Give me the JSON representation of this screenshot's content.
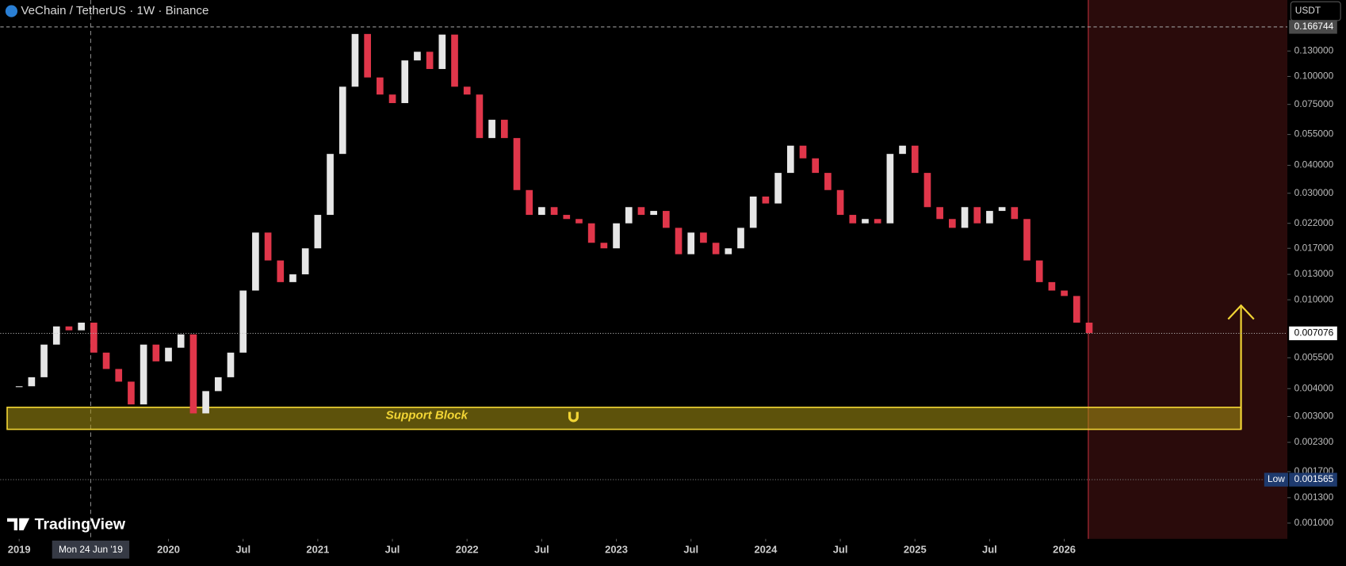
{
  "header": {
    "symbol": "VeChain / TetherUS · 1W · Binance"
  },
  "currency": "USDT",
  "logo": "TradingView",
  "chart_data": {
    "type": "candlestick",
    "log_scale": true,
    "up_color": "#e6e6e6",
    "down_color": "#e0364a",
    "values": [
      0.0041,
      0.0045,
      0.0063,
      0.0076,
      0.0073,
      0.0079,
      0.0058,
      0.0049,
      0.0043,
      0.0034,
      0.0063,
      0.0053,
      0.0061,
      0.007,
      0.0031,
      0.0039,
      0.0045,
      0.0058,
      0.011,
      0.02,
      0.015,
      0.012,
      0.013,
      0.017,
      0.024,
      0.045,
      0.09,
      0.155,
      0.099,
      0.083,
      0.076,
      0.118,
      0.129,
      0.108,
      0.154,
      0.09,
      0.083,
      0.053,
      0.064,
      0.053,
      0.031,
      0.024,
      0.026,
      0.024,
      0.023,
      0.022,
      0.018,
      0.017,
      0.022,
      0.026,
      0.024,
      0.025,
      0.021,
      0.016,
      0.02,
      0.018,
      0.016,
      0.017,
      0.021,
      0.029,
      0.027,
      0.037,
      0.049,
      0.043,
      0.037,
      0.031,
      0.024,
      0.022,
      0.023,
      0.022,
      0.045,
      0.049,
      0.037,
      0.026,
      0.023,
      0.021,
      0.026,
      0.022,
      0.025,
      0.026,
      0.023,
      0.015,
      0.012,
      0.011,
      0.0104,
      0.0079,
      0.0071
    ],
    "ylim": [
      0.00085,
      0.22
    ],
    "yticks": [
      {
        "value": 0.13,
        "label": "0.130000"
      },
      {
        "value": 0.1,
        "label": "0.100000"
      },
      {
        "value": 0.075,
        "label": "0.075000"
      },
      {
        "value": 0.055,
        "label": "0.055000"
      },
      {
        "value": 0.04,
        "label": "0.040000"
      },
      {
        "value": 0.03,
        "label": "0.030000"
      },
      {
        "value": 0.022,
        "label": "0.022000"
      },
      {
        "value": 0.017,
        "label": "0.017000"
      },
      {
        "value": 0.013,
        "label": "0.013000"
      },
      {
        "value": 0.01,
        "label": "0.010000"
      },
      {
        "value": 0.0055,
        "label": "0.005500"
      },
      {
        "value": 0.004,
        "label": "0.004000"
      },
      {
        "value": 0.003,
        "label": "0.003000"
      },
      {
        "value": 0.0023,
        "label": "0.002300"
      },
      {
        "value": 0.0017,
        "label": "0.001700"
      },
      {
        "value": 0.0013,
        "label": "0.001300"
      },
      {
        "value": 0.001,
        "label": "0.001000"
      }
    ],
    "xticks": [
      {
        "value": 0,
        "label": "2019"
      },
      {
        "value": 12,
        "label": "2020"
      },
      {
        "value": 18,
        "label": "Jul"
      },
      {
        "value": 24,
        "label": "2021"
      },
      {
        "value": 30,
        "label": "Jul"
      },
      {
        "value": 36,
        "label": "2022"
      },
      {
        "value": 42,
        "label": "Jul"
      },
      {
        "value": 48,
        "label": "2023"
      },
      {
        "value": 54,
        "label": "Jul"
      },
      {
        "value": 60,
        "label": "2024"
      },
      {
        "value": 66,
        "label": "Jul"
      },
      {
        "value": 72,
        "label": "2025"
      },
      {
        "value": 78,
        "label": "Jul"
      },
      {
        "value": 84,
        "label": "2026"
      }
    ],
    "crosshair": {
      "value": 5.75,
      "label": "Mon 24 Jun '19"
    },
    "last_price": {
      "value": 0.007076,
      "label": "0.007076"
    },
    "high": {
      "value": 0.166744,
      "label": "0.166744"
    },
    "low": {
      "name": "Low",
      "value": 0.001565,
      "label": "0.001565"
    },
    "support_zone": {
      "label": "Support Block",
      "range": [
        0.00263,
        0.0033
      ]
    }
  }
}
